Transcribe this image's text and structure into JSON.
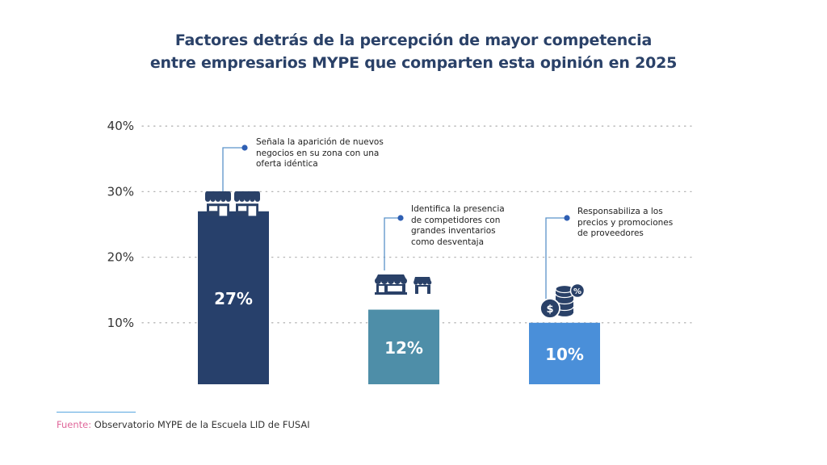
{
  "chart_data": {
    "type": "bar",
    "title": "Factores detrás de la percepción de mayor competencia entre empresarios MYPE que comparten esta opinión en 2025",
    "title_lines": [
      "Factores detrás de la percepción de mayor competencia",
      "entre empresarios MYPE que comparten esta opinión en 2025"
    ],
    "categories": [
      "Señala la aparición de nuevos negocios en su zona con una oferta idéntica",
      "Identifica la presencia de competidores con grandes inventarios como desventaja",
      "Responsabiliza a los precios y promociones de proveedores"
    ],
    "annotations": [
      [
        "Señala la aparición de nuevos",
        "negocios en su zona con una",
        "oferta idéntica"
      ],
      [
        "Identifica la presencia",
        "de competidores con",
        "grandes inventarios",
        "como desventaja"
      ],
      [
        "Responsabiliza a los",
        "precios y promociones",
        "de proveedores"
      ]
    ],
    "icons": [
      "two-stores-icon",
      "store-and-kiosk-icon",
      "coins-discount-icon"
    ],
    "values": [
      27,
      12,
      10
    ],
    "value_labels": [
      "27%",
      "12%",
      "10%"
    ],
    "colors": [
      "#27406b",
      "#4e8ea8",
      "#4a8fd9"
    ],
    "yticks": [
      10,
      20,
      30,
      40
    ],
    "ytick_labels": [
      "10%",
      "20%",
      "30%",
      "40%"
    ],
    "ylim": [
      0,
      40
    ],
    "xlabel": "",
    "ylabel": "",
    "grid": "dotted horizontal",
    "legend": "none"
  },
  "source": {
    "label": "Fuente:",
    "text": " Observatorio MYPE de la Escuela LID de FUSAI"
  }
}
